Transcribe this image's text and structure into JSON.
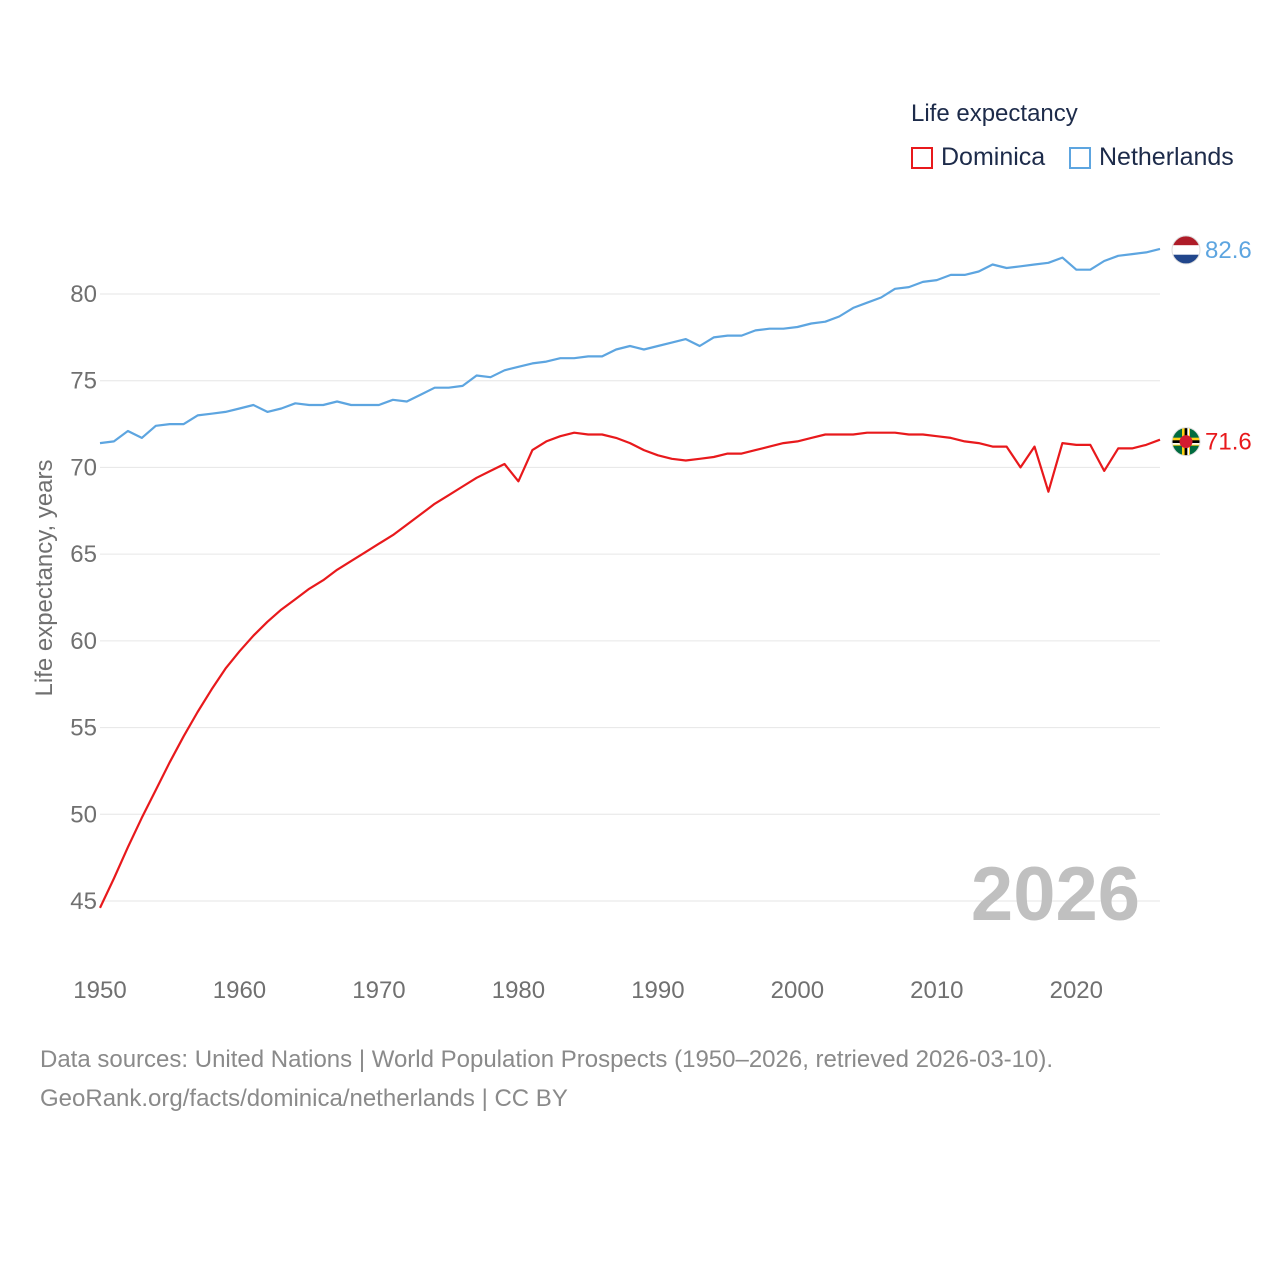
{
  "colors": {
    "dominica": "#e8191c",
    "netherlands": "#5da5e0",
    "grid": "#e6e6e6",
    "tick": "#707070",
    "year": "#c0c0c0"
  },
  "legend": {
    "title": "Life expectancy",
    "items": [
      "Dominica",
      "Netherlands"
    ]
  },
  "footer": {
    "line1": "Data sources: United Nations | World Population Prospects (1950–2026, retrieved 2026-03-10).",
    "line2": "GeoRank.org/facts/dominica/netherlands | CC BY"
  },
  "chart_data": {
    "type": "line",
    "title": "Life expectancy",
    "xlabel": "",
    "ylabel": "Life expectancy, years",
    "xlim": [
      1950,
      2026
    ],
    "ylim": [
      43,
      84
    ],
    "yticks": [
      45,
      50,
      55,
      60,
      65,
      70,
      75,
      80
    ],
    "xticks": [
      1950,
      1960,
      1970,
      1980,
      1990,
      2000,
      2010,
      2020
    ],
    "year_label": "2026",
    "x": [
      1950,
      1951,
      1952,
      1953,
      1954,
      1955,
      1956,
      1957,
      1958,
      1959,
      1960,
      1961,
      1962,
      1963,
      1964,
      1965,
      1966,
      1967,
      1968,
      1969,
      1970,
      1971,
      1972,
      1973,
      1974,
      1975,
      1976,
      1977,
      1978,
      1979,
      1980,
      1981,
      1982,
      1983,
      1984,
      1985,
      1986,
      1987,
      1988,
      1989,
      1990,
      1991,
      1992,
      1993,
      1994,
      1995,
      1996,
      1997,
      1998,
      1999,
      2000,
      2001,
      2002,
      2003,
      2004,
      2005,
      2006,
      2007,
      2008,
      2009,
      2010,
      2011,
      2012,
      2013,
      2014,
      2015,
      2016,
      2017,
      2018,
      2019,
      2020,
      2021,
      2022,
      2023,
      2024,
      2025,
      2026
    ],
    "series": [
      {
        "name": "Dominica",
        "end_label": "71.6",
        "values": [
          44.6,
          46.3,
          48.1,
          49.8,
          51.4,
          53.0,
          54.5,
          55.9,
          57.2,
          58.4,
          59.4,
          60.3,
          61.1,
          61.8,
          62.4,
          63.0,
          63.5,
          64.1,
          64.6,
          65.1,
          65.6,
          66.1,
          66.7,
          67.3,
          67.9,
          68.4,
          68.9,
          69.4,
          69.8,
          70.2,
          69.2,
          71.0,
          71.5,
          71.8,
          72.0,
          71.9,
          71.9,
          71.7,
          71.4,
          71.0,
          70.7,
          70.5,
          70.4,
          70.5,
          70.6,
          70.8,
          70.8,
          71.0,
          71.2,
          71.4,
          71.5,
          71.7,
          71.9,
          71.9,
          71.9,
          72.0,
          72.0,
          72.0,
          71.9,
          71.9,
          71.8,
          71.7,
          71.5,
          71.4,
          71.2,
          71.2,
          70.0,
          71.2,
          68.6,
          71.4,
          71.3,
          71.3,
          69.8,
          71.1,
          71.1,
          71.3,
          71.6
        ]
      },
      {
        "name": "Netherlands",
        "end_label": "82.6",
        "values": [
          71.4,
          71.5,
          72.1,
          71.7,
          72.4,
          72.5,
          72.5,
          73.0,
          73.1,
          73.2,
          73.4,
          73.6,
          73.2,
          73.4,
          73.7,
          73.6,
          73.6,
          73.8,
          73.6,
          73.6,
          73.6,
          73.9,
          73.8,
          74.2,
          74.6,
          74.6,
          74.7,
          75.3,
          75.2,
          75.6,
          75.8,
          76.0,
          76.1,
          76.3,
          76.3,
          76.4,
          76.4,
          76.8,
          77.0,
          76.8,
          77.0,
          77.2,
          77.4,
          77.0,
          77.5,
          77.6,
          77.6,
          77.9,
          78.0,
          78.0,
          78.1,
          78.3,
          78.4,
          78.7,
          79.2,
          79.5,
          79.8,
          80.3,
          80.4,
          80.7,
          80.8,
          81.1,
          81.1,
          81.3,
          81.7,
          81.5,
          81.6,
          81.7,
          81.8,
          82.1,
          81.4,
          81.4,
          81.9,
          82.2,
          82.3,
          82.4,
          82.6
        ]
      }
    ]
  }
}
